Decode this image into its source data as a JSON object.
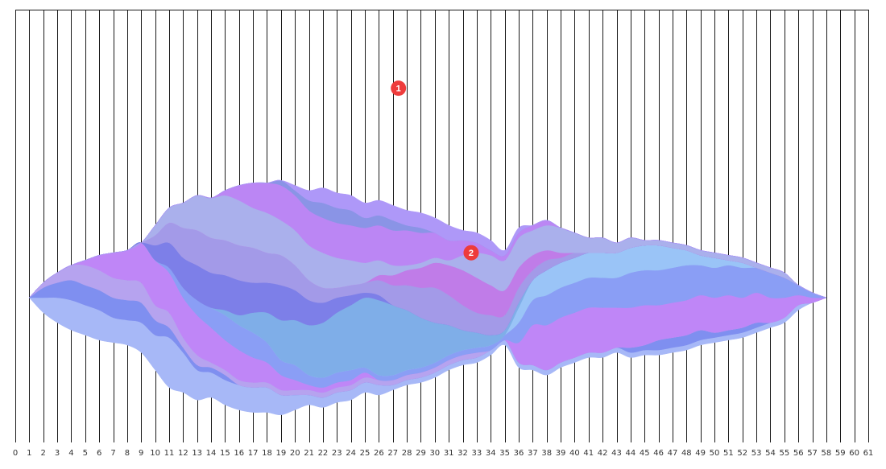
{
  "chart_data": {
    "type": "area",
    "subtype": "streamgraph",
    "x": [
      0,
      1,
      2,
      3,
      4,
      5,
      6,
      7,
      8,
      9,
      10,
      11,
      12,
      13,
      14,
      15,
      16,
      17,
      18,
      19,
      20,
      21,
      22,
      23,
      24,
      25,
      26,
      27,
      28,
      29,
      30,
      31,
      32,
      33,
      34,
      35,
      36,
      37,
      38,
      39,
      40,
      41,
      42,
      43,
      44,
      45,
      46,
      47,
      48,
      49,
      50,
      51,
      52,
      53,
      54,
      55,
      56,
      57,
      58,
      59,
      60,
      61
    ],
    "xlim": [
      0,
      61
    ],
    "grid": true,
    "legend": "none",
    "series": [
      {
        "color": "#a7b8f7",
        "values": [
          0,
          0,
          3,
          5,
          6,
          6,
          6,
          5,
          5,
          6,
          7,
          10,
          8,
          6,
          5,
          5,
          5,
          5,
          5,
          4,
          3,
          2,
          2,
          2,
          2,
          2,
          2,
          1,
          1,
          1,
          1,
          1,
          1,
          1,
          1,
          1,
          1,
          1,
          1,
          1,
          1,
          1,
          1,
          1,
          1,
          1,
          1,
          1,
          1,
          1,
          1,
          1,
          1,
          1,
          1,
          1,
          1,
          0,
          0,
          0,
          0,
          0
        ]
      },
      {
        "color": "#7f8ff0",
        "values": [
          0,
          0,
          2,
          3,
          4,
          4,
          4,
          4,
          4,
          4,
          3,
          2,
          1,
          1,
          1,
          1,
          0,
          0,
          0,
          0,
          0,
          0,
          0,
          0,
          0,
          0,
          0,
          0,
          0,
          0,
          0,
          0,
          0,
          0,
          0,
          0,
          0,
          0,
          0,
          0,
          0,
          0,
          0,
          0,
          1,
          1,
          2,
          2,
          2,
          2,
          1,
          1,
          1,
          1,
          0,
          0,
          0,
          0,
          0,
          0,
          0,
          0
        ]
      },
      {
        "color": "#b6a3ef",
        "values": [
          0,
          0,
          1,
          2,
          3,
          4,
          4,
          4,
          4,
          4,
          3,
          3,
          2,
          2,
          1,
          1,
          1,
          1,
          1,
          1,
          1,
          1,
          1,
          1,
          1,
          1,
          1,
          1,
          1,
          1,
          1,
          1,
          1,
          1,
          0,
          0,
          0,
          0,
          0,
          0,
          0,
          0,
          0,
          0,
          0,
          0,
          0,
          0,
          0,
          0,
          0,
          0,
          0,
          0,
          0,
          0,
          0,
          0,
          0,
          0,
          0,
          0
        ]
      },
      {
        "color": "#bf86f7",
        "values": [
          0,
          0,
          0,
          0,
          0,
          1,
          3,
          5,
          6,
          8,
          9,
          8,
          8,
          8,
          7,
          6,
          6,
          5,
          4,
          3,
          2,
          1,
          1,
          1,
          1,
          1,
          0,
          0,
          0,
          0,
          0,
          0,
          0,
          0,
          0,
          0,
          4,
          8,
          9,
          9,
          9,
          9,
          9,
          8,
          8,
          8,
          7,
          7,
          7,
          7,
          7,
          7,
          6,
          6,
          5,
          4,
          2,
          1,
          0,
          0,
          0,
          0
        ]
      },
      {
        "color": "#8a9ef5",
        "values": [
          0,
          0,
          0,
          0,
          0,
          0,
          0,
          0,
          0,
          0,
          0,
          1,
          2,
          3,
          4,
          5,
          5,
          5,
          4,
          3,
          3,
          2,
          2,
          2,
          2,
          1,
          1,
          1,
          1,
          1,
          1,
          1,
          1,
          1,
          1,
          1,
          4,
          5,
          6,
          6,
          6,
          6,
          6,
          6,
          7,
          7,
          7,
          7,
          7,
          6,
          6,
          6,
          6,
          5,
          5,
          4,
          2,
          1,
          0,
          0,
          0,
          0
        ]
      },
      {
        "color": "#9ac4f7",
        "values": [
          0,
          0,
          0,
          0,
          0,
          0,
          0,
          0,
          0,
          0,
          0,
          0,
          0,
          0,
          0,
          0,
          0,
          0,
          0,
          0,
          0,
          0,
          0,
          0,
          0,
          0,
          0,
          0,
          0,
          0,
          0,
          0,
          0,
          0,
          0,
          0,
          3,
          4,
          5,
          5,
          5,
          5,
          5,
          5,
          5,
          5,
          5,
          4,
          3,
          2,
          2,
          1,
          1,
          0,
          0,
          0,
          0,
          0,
          0,
          0,
          0,
          0
        ]
      },
      {
        "color": "#7faee8",
        "values": [
          0,
          0,
          0,
          0,
          0,
          0,
          0,
          0,
          0,
          0,
          0,
          0,
          0,
          0,
          0,
          1,
          2,
          4,
          6,
          8,
          9,
          10,
          11,
          12,
          13,
          14,
          15,
          14,
          12,
          10,
          8,
          6,
          4,
          3,
          2,
          1,
          1,
          0,
          0,
          0,
          0,
          0,
          0,
          0,
          0,
          0,
          0,
          0,
          0,
          0,
          0,
          0,
          0,
          0,
          0,
          0,
          0,
          0,
          0,
          0,
          0,
          0
        ]
      },
      {
        "color": "#7d7fe8",
        "values": [
          0,
          0,
          0,
          0,
          0,
          0,
          0,
          0,
          0,
          0,
          3,
          5,
          6,
          7,
          7,
          7,
          7,
          6,
          6,
          7,
          6,
          5,
          4,
          3,
          2,
          1,
          1,
          0,
          0,
          0,
          0,
          0,
          0,
          0,
          0,
          0,
          0,
          0,
          0,
          0,
          0,
          0,
          0,
          0,
          0,
          0,
          0,
          0,
          0,
          0,
          0,
          0,
          0,
          0,
          0,
          0,
          0,
          0,
          0,
          0,
          0,
          0
        ]
      },
      {
        "color": "#a39ae8",
        "values": [
          0,
          0,
          0,
          0,
          0,
          0,
          0,
          0,
          0,
          0,
          2,
          4,
          6,
          7,
          7,
          7,
          7,
          7,
          6,
          6,
          5,
          4,
          3,
          2,
          2,
          2,
          3,
          4,
          5,
          6,
          7,
          6,
          5,
          4,
          4,
          3,
          3,
          2,
          2,
          1,
          1,
          0,
          0,
          0,
          0,
          0,
          0,
          0,
          0,
          0,
          0,
          0,
          0,
          0,
          0,
          0,
          0,
          0,
          0,
          0,
          0,
          0
        ]
      },
      {
        "color": "#c07ce8",
        "values": [
          0,
          0,
          0,
          0,
          0,
          0,
          0,
          0,
          0,
          0,
          0,
          0,
          0,
          0,
          0,
          0,
          0,
          0,
          0,
          0,
          0,
          0,
          0,
          0,
          0,
          0,
          1,
          2,
          3,
          4,
          5,
          6,
          7,
          7,
          6,
          5,
          4,
          3,
          2,
          1,
          0,
          0,
          0,
          0,
          0,
          0,
          0,
          0,
          0,
          0,
          0,
          0,
          0,
          0,
          0,
          0,
          0,
          0,
          0,
          0,
          0,
          0
        ]
      },
      {
        "color": "#aab0ec",
        "values": [
          0,
          0,
          0,
          0,
          0,
          0,
          0,
          0,
          0,
          0,
          2,
          3,
          5,
          7,
          8,
          9,
          9,
          8,
          8,
          7,
          7,
          7,
          7,
          6,
          5,
          4,
          3,
          2,
          1,
          1,
          1,
          1,
          3,
          5,
          6,
          6,
          6,
          5,
          5,
          5,
          4,
          3,
          3,
          2,
          2,
          1,
          1,
          1,
          1,
          1,
          1,
          1,
          1,
          1,
          1,
          1,
          0,
          0,
          0,
          0,
          0,
          0
        ]
      },
      {
        "color": "#bb86f4",
        "values": [
          0,
          0,
          0,
          0,
          0,
          0,
          0,
          0,
          0,
          0,
          0,
          0,
          0,
          0,
          0,
          1,
          3,
          5,
          6,
          7,
          7,
          7,
          7,
          7,
          7,
          7,
          7,
          7,
          7,
          6,
          5,
          4,
          3,
          2,
          1,
          1,
          1,
          1,
          1,
          0,
          0,
          0,
          0,
          0,
          0,
          0,
          0,
          0,
          0,
          0,
          0,
          0,
          0,
          0,
          0,
          0,
          0,
          0,
          0,
          0,
          0,
          0
        ]
      },
      {
        "color": "#8a94e6",
        "values": [
          0,
          0,
          0,
          0,
          0,
          0,
          0,
          0,
          0,
          0,
          0,
          0,
          0,
          0,
          0,
          0,
          0,
          0,
          0,
          1,
          1,
          2,
          3,
          3,
          3,
          2,
          2,
          2,
          1,
          1,
          0,
          0,
          0,
          0,
          0,
          0,
          0,
          0,
          0,
          0,
          0,
          0,
          0,
          0,
          0,
          0,
          0,
          0,
          0,
          0,
          0,
          0,
          0,
          0,
          0,
          0,
          0,
          0,
          0,
          0,
          0,
          0
        ]
      },
      {
        "color": "#ae98f8",
        "values": [
          0,
          0,
          0,
          0,
          0,
          0,
          0,
          0,
          0,
          0,
          0,
          0,
          0,
          0,
          0,
          0,
          0,
          0,
          0,
          0,
          1,
          2,
          3,
          3,
          3,
          3,
          3,
          3,
          3,
          3,
          3,
          3,
          2,
          2,
          2,
          1,
          1,
          0,
          0,
          0,
          0,
          0,
          0,
          0,
          0,
          0,
          0,
          0,
          0,
          0,
          0,
          0,
          0,
          0,
          0,
          0,
          0,
          0,
          0,
          0,
          0,
          0
        ]
      }
    ],
    "markers": [
      {
        "label": "1",
        "x": 27.4,
        "y": 42
      },
      {
        "label": "2",
        "x": 32.6,
        "y": 9
      }
    ]
  }
}
